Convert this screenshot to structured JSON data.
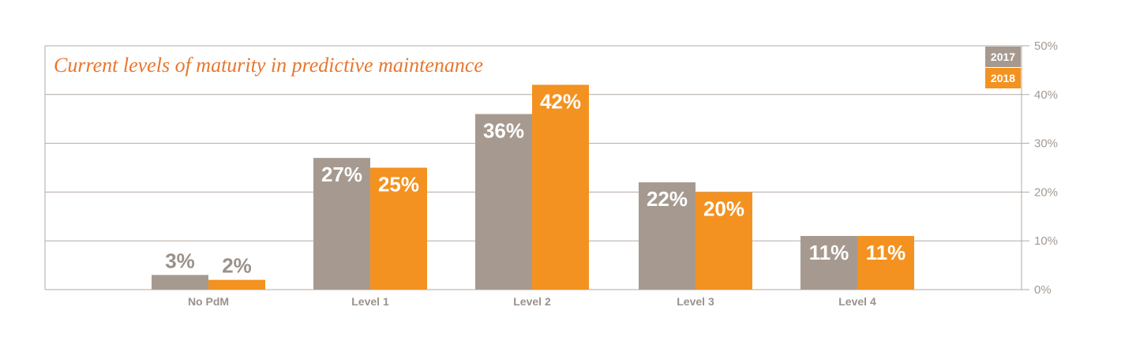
{
  "chart_data": {
    "type": "bar",
    "title": "Current levels of maturity in predictive maintenance",
    "categories": [
      "No PdM",
      "Level 1",
      "Level 2",
      "Level 3",
      "Level 4"
    ],
    "series": [
      {
        "name": "2017",
        "values": [
          3,
          27,
          36,
          22,
          11
        ],
        "labels": [
          "3%",
          "27%",
          "36%",
          "22%",
          "11%"
        ],
        "color": "#a69a90"
      },
      {
        "name": "2018",
        "values": [
          2,
          25,
          42,
          20,
          11
        ],
        "labels": [
          "2%",
          "25%",
          "42%",
          "20%",
          "11%"
        ],
        "color": "#f39220"
      }
    ],
    "ylim": [
      0,
      50
    ],
    "yticks": [
      0,
      10,
      20,
      30,
      40,
      50
    ],
    "ytick_labels": [
      "0%",
      "10%",
      "20%",
      "30%",
      "40%",
      "50%"
    ],
    "y_axis_position": "right",
    "grid": true,
    "legend_position": "top-right",
    "colors": {
      "title": "#e8772e",
      "grid": "#b3aaa3",
      "tick": "#a39a92",
      "category": "#9b918a",
      "outside_label": "#9b918a",
      "inside_label": "#ffffff"
    }
  }
}
